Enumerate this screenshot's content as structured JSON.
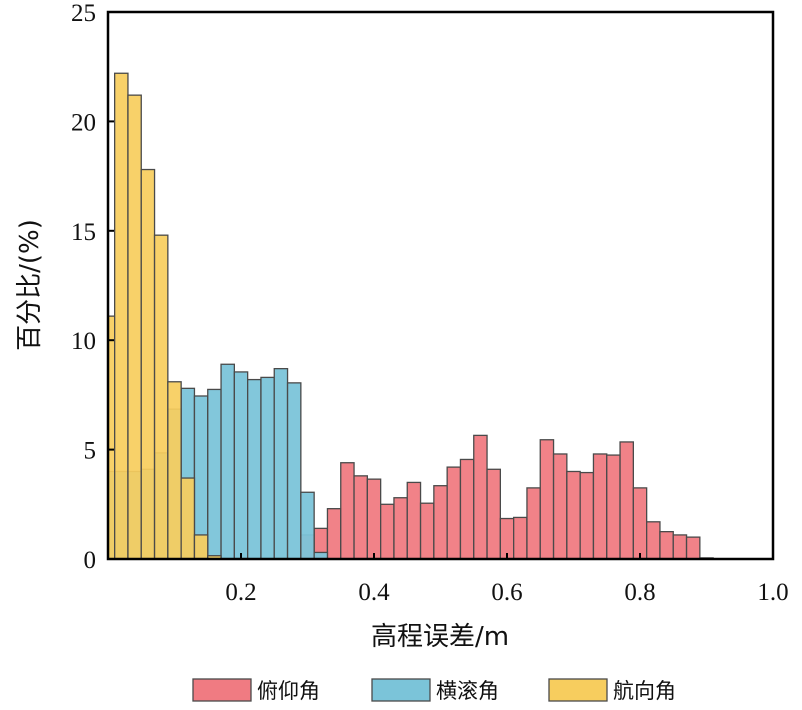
{
  "chart_data": {
    "type": "bar",
    "subtype": "overlapping-histogram",
    "title": "",
    "xlabel": "高程误差/m",
    "ylabel": "百分比/(%)",
    "xlim": [
      0,
      1.0
    ],
    "ylim": [
      0,
      25
    ],
    "bin_width": 0.02,
    "xticks": [
      0.2,
      0.4,
      0.6,
      0.8,
      1.0
    ],
    "xtick_labels": [
      "0.2",
      "0.4",
      "0.6",
      "0.8",
      "1.0"
    ],
    "yticks": [
      0,
      5,
      10,
      15,
      20,
      25
    ],
    "ytick_labels": [
      "0",
      "5",
      "10",
      "15",
      "20",
      "25"
    ],
    "grid": false,
    "legend_position": "bottom",
    "series": [
      {
        "name": "俯仰角",
        "color": "#F07B82",
        "x": [
          0.3,
          0.32,
          0.34,
          0.36,
          0.38,
          0.4,
          0.42,
          0.44,
          0.46,
          0.48,
          0.5,
          0.52,
          0.54,
          0.56,
          0.58,
          0.6,
          0.62,
          0.64,
          0.66,
          0.68,
          0.7,
          0.72,
          0.74,
          0.76,
          0.78,
          0.8,
          0.82,
          0.84,
          0.86,
          0.88,
          0.9
        ],
        "values": [
          1.1,
          1.4,
          2.3,
          4.4,
          3.8,
          3.65,
          2.5,
          2.8,
          3.5,
          2.55,
          3.35,
          4.2,
          4.55,
          5.65,
          4.1,
          1.85,
          1.9,
          3.25,
          5.45,
          4.8,
          4.0,
          3.95,
          4.8,
          4.75,
          5.35,
          3.25,
          1.7,
          1.25,
          1.1,
          1.0,
          0.05
        ]
      },
      {
        "name": "横滚角",
        "color": "#7BC4D9",
        "x": [
          0.0,
          0.02,
          0.04,
          0.06,
          0.08,
          0.1,
          0.12,
          0.14,
          0.16,
          0.18,
          0.2,
          0.22,
          0.24,
          0.26,
          0.28,
          0.3,
          0.32
        ],
        "values": [
          4.0,
          4.0,
          4.0,
          4.1,
          4.85,
          6.85,
          7.8,
          7.45,
          7.75,
          8.9,
          8.55,
          8.2,
          8.3,
          8.7,
          8.05,
          3.05,
          0.3
        ]
      },
      {
        "name": "航向角",
        "color": "#F7CD5E",
        "x": [
          0.0,
          0.02,
          0.04,
          0.06,
          0.08,
          0.1,
          0.12,
          0.14,
          0.16
        ],
        "values": [
          11.1,
          22.2,
          21.2,
          17.8,
          14.8,
          8.1,
          3.7,
          1.1,
          0.15
        ]
      }
    ]
  }
}
